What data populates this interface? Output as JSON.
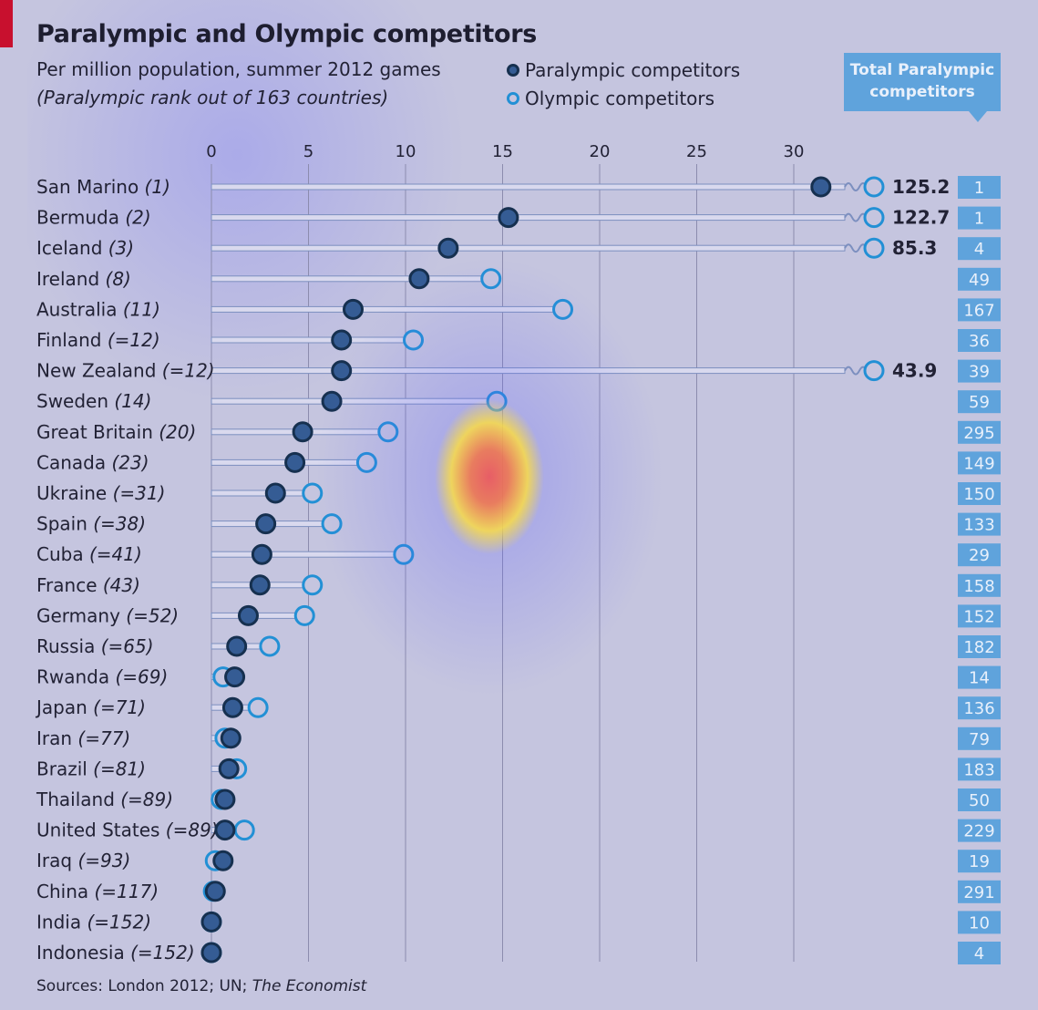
{
  "header": {
    "title": "Paralympic and Olympic competitors",
    "subtitle": "Per million population, summer 2012 games",
    "subtitle2": "(Paralympic rank out of 163 countries)",
    "legend_paralympic": "Paralympic competitors",
    "legend_olympic": "Olympic competitors",
    "total_header_line1": "Total Paralympic",
    "total_header_line2": "competitors"
  },
  "source": {
    "prefix": "Sources: London 2012; UN; ",
    "italic": "The Economist"
  },
  "colors": {
    "background": "#c5c5df",
    "paralympic_fill": "#355c94",
    "paralympic_stroke": "#16304f",
    "olympic_stroke": "#2290d5",
    "total_box": "#5fa3dc",
    "accent_red": "#c8102e"
  },
  "chart_data": {
    "type": "dot-plot",
    "title": "Paralympic and Olympic competitors",
    "subtitle": "Per million population, summer 2012 games",
    "xlim": [
      0,
      34
    ],
    "xticks": [
      0,
      5,
      10,
      15,
      20,
      25,
      30
    ],
    "grid": true,
    "legend_placement": "top",
    "series": [
      {
        "name": "Paralympic competitors"
      },
      {
        "name": "Olympic competitors"
      }
    ],
    "rows": [
      {
        "country": "San Marino",
        "rank": "(1)",
        "paralympic": 31.4,
        "olympic": 125.2,
        "olympic_label": "125.2",
        "total": "1"
      },
      {
        "country": "Bermuda",
        "rank": "(2)",
        "paralympic": 15.3,
        "olympic": 122.7,
        "olympic_label": "122.7",
        "total": "1"
      },
      {
        "country": "Iceland",
        "rank": "(3)",
        "paralympic": 12.2,
        "olympic": 85.3,
        "olympic_label": "85.3",
        "total": "4"
      },
      {
        "country": "Ireland",
        "rank": "(8)",
        "paralympic": 10.7,
        "olympic": 14.4,
        "olympic_label": null,
        "total": "49"
      },
      {
        "country": "Australia",
        "rank": "(11)",
        "paralympic": 7.3,
        "olympic": 18.1,
        "olympic_label": null,
        "total": "167"
      },
      {
        "country": "Finland",
        "rank": "(=12)",
        "paralympic": 6.7,
        "olympic": 10.4,
        "olympic_label": null,
        "total": "36"
      },
      {
        "country": "New Zealand",
        "rank": "(=12)",
        "paralympic": 6.7,
        "olympic": 43.9,
        "olympic_label": "43.9",
        "total": "39"
      },
      {
        "country": "Sweden",
        "rank": "(14)",
        "paralympic": 6.2,
        "olympic": 14.7,
        "olympic_label": null,
        "total": "59"
      },
      {
        "country": "Great Britain",
        "rank": "(20)",
        "paralympic": 4.7,
        "olympic": 9.1,
        "olympic_label": null,
        "total": "295"
      },
      {
        "country": "Canada",
        "rank": "(23)",
        "paralympic": 4.3,
        "olympic": 8.0,
        "olympic_label": null,
        "total": "149"
      },
      {
        "country": "Ukraine",
        "rank": "(=31)",
        "paralympic": 3.3,
        "olympic": 5.2,
        "olympic_label": null,
        "total": "150"
      },
      {
        "country": "Spain",
        "rank": "(=38)",
        "paralympic": 2.8,
        "olympic": 6.2,
        "olympic_label": null,
        "total": "133"
      },
      {
        "country": "Cuba",
        "rank": "(=41)",
        "paralympic": 2.6,
        "olympic": 9.9,
        "olympic_label": null,
        "total": "29"
      },
      {
        "country": "France",
        "rank": "(43)",
        "paralympic": 2.5,
        "olympic": 5.2,
        "olympic_label": null,
        "total": "158"
      },
      {
        "country": "Germany",
        "rank": "(=52)",
        "paralympic": 1.9,
        "olympic": 4.8,
        "olympic_label": null,
        "total": "152"
      },
      {
        "country": "Russia",
        "rank": "(=65)",
        "paralympic": 1.3,
        "olympic": 3.0,
        "olympic_label": null,
        "total": "182"
      },
      {
        "country": "Rwanda",
        "rank": "(=69)",
        "paralympic": 1.2,
        "olympic": 0.6,
        "olympic_label": null,
        "total": "14"
      },
      {
        "country": "Japan",
        "rank": "(=71)",
        "paralympic": 1.1,
        "olympic": 2.4,
        "olympic_label": null,
        "total": "136"
      },
      {
        "country": "Iran",
        "rank": "(=77)",
        "paralympic": 1.0,
        "olympic": 0.7,
        "olympic_label": null,
        "total": "79"
      },
      {
        "country": "Brazil",
        "rank": "(=81)",
        "paralympic": 0.9,
        "olympic": 1.3,
        "olympic_label": null,
        "total": "183"
      },
      {
        "country": "Thailand",
        "rank": "(=89)",
        "paralympic": 0.7,
        "olympic": 0.5,
        "olympic_label": null,
        "total": "50"
      },
      {
        "country": "United States",
        "rank": "(=89)",
        "paralympic": 0.7,
        "olympic": 1.7,
        "olympic_label": null,
        "total": "229"
      },
      {
        "country": "Iraq",
        "rank": "(=93)",
        "paralympic": 0.6,
        "olympic": 0.2,
        "olympic_label": null,
        "total": "19"
      },
      {
        "country": "China",
        "rank": "(=117)",
        "paralympic": 0.2,
        "olympic": 0.1,
        "olympic_label": null,
        "total": "291"
      },
      {
        "country": "India",
        "rank": "(=152)",
        "paralympic": 0.0,
        "olympic": 0.0,
        "olympic_label": null,
        "total": "10"
      },
      {
        "country": "Indonesia",
        "rank": "(=152)",
        "paralympic": 0.0,
        "olympic": 0.0,
        "olympic_label": null,
        "total": "4"
      }
    ]
  }
}
